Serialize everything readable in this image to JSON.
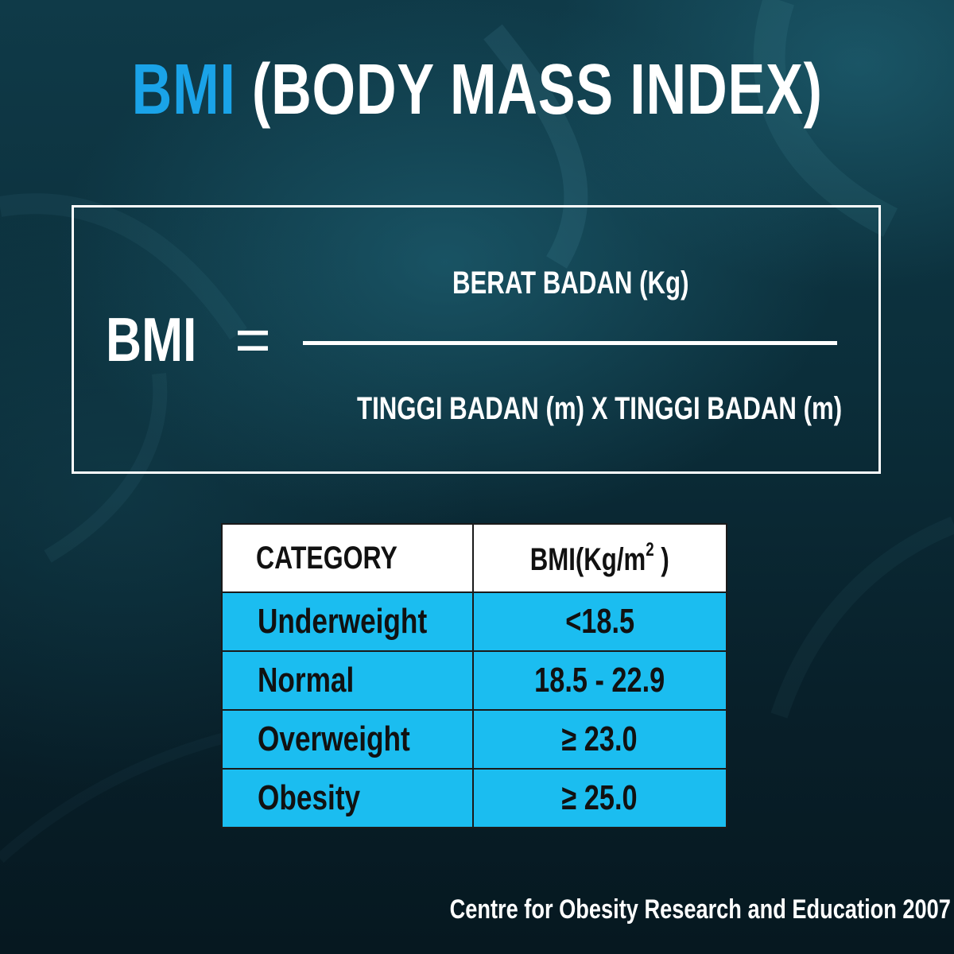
{
  "title": {
    "accent": "BMI",
    "rest": "(BODY MASS INDEX)"
  },
  "formula": {
    "lhs": "BMI",
    "equals": "=",
    "numerator": "BERAT BADAN (Kg)",
    "denominator": "TINGGI BADAN (m) X TINGGI BADAN (m)"
  },
  "table": {
    "headers": {
      "category": "CATEGORY",
      "bmi": "BMI(Kg/m",
      "bmi_sup": "2",
      "bmi_close": " )"
    },
    "rows": [
      {
        "category": "Underweight",
        "value": "<18.5"
      },
      {
        "category": "Normal",
        "value": "18.5 - 22.9"
      },
      {
        "category": "Overweight",
        "value": "≥ 23.0"
      },
      {
        "category": "Obesity",
        "value": "≥ 25.0"
      }
    ]
  },
  "source": "Centre for Obesity Research and Education 2007",
  "colors": {
    "accent": "#1aa3e8",
    "table_row": "#1bbdf0",
    "background": "#0b2e3a"
  }
}
